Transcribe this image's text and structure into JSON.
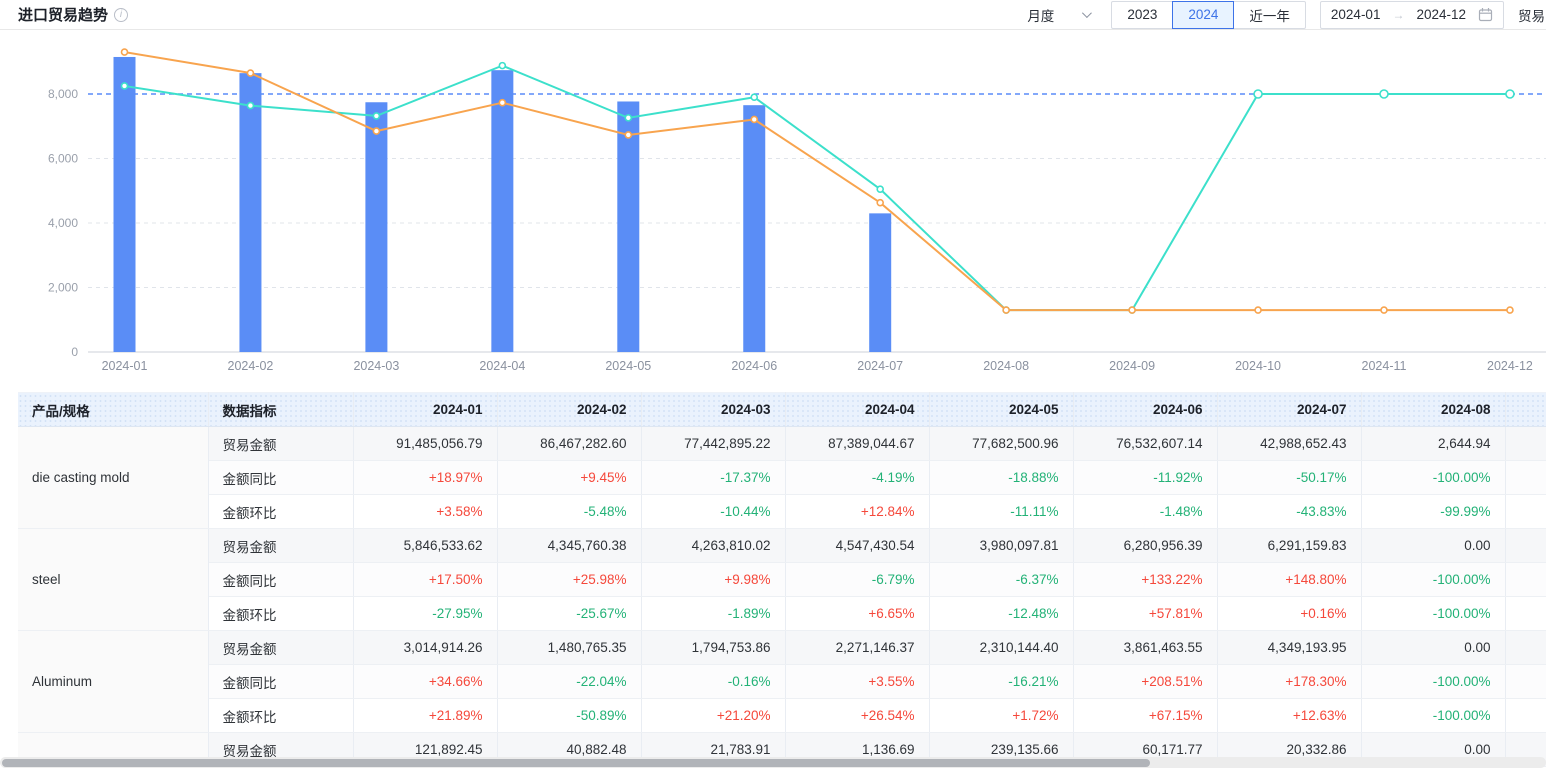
{
  "header": {
    "title": "进口贸易趋势",
    "info_icon": "info-circle",
    "frequency": "月度",
    "year_buttons": [
      {
        "label": "2023",
        "selected": false
      },
      {
        "label": "2024",
        "selected": true
      },
      {
        "label": "近一年",
        "selected": false
      }
    ],
    "date_range": {
      "start": "2024-01",
      "separator": "→",
      "end": "2024-12"
    },
    "partial_control_label": "贸易"
  },
  "chart_data": {
    "type": "combo-bar-line",
    "categories": [
      "2024-01",
      "2024-02",
      "2024-03",
      "2024-04",
      "2024-05",
      "2024-06",
      "2024-07",
      "2024-08",
      "2024-09",
      "2024-10",
      "2024-11",
      "2024-12"
    ],
    "yticks": [
      0,
      2000,
      4000,
      6000,
      8000
    ],
    "ylim": [
      0,
      9600
    ],
    "markline": 8000,
    "grid": true,
    "legend_position": "none",
    "values_estimated_from_pixels": true,
    "series": [
      {
        "name": "bar-series",
        "type": "bar",
        "color": "#5a8df6",
        "values": [
          9148,
          8647,
          7744,
          8739,
          7768,
          7653,
          4299,
          null,
          null,
          null,
          null,
          null
        ]
      },
      {
        "name": "line-series-teal",
        "type": "line",
        "color": "#3ce0cb",
        "values": [
          8250,
          7640,
          7320,
          8880,
          7260,
          7900,
          5050,
          1300,
          1300,
          8000,
          8000,
          8000
        ]
      },
      {
        "name": "line-series-orange",
        "type": "line",
        "color": "#f8a44e",
        "values": [
          9300,
          8650,
          6850,
          7730,
          6730,
          7210,
          4630,
          1300,
          1300,
          1300,
          1300,
          1300
        ]
      }
    ]
  },
  "table": {
    "col_product": "产品/规格",
    "col_indicator": "数据指标",
    "months": [
      "2024-01",
      "2024-02",
      "2024-03",
      "2024-04",
      "2024-05",
      "2024-06",
      "2024-07",
      "2024-08"
    ],
    "trailing_empty_col": "",
    "products": [
      {
        "name": "die casting mold",
        "rows": [
          {
            "indicator": "贸易金额",
            "kind": "amount",
            "values": [
              "91,485,056.79",
              "86,467,282.60",
              "77,442,895.22",
              "87,389,044.67",
              "77,682,500.96",
              "76,532,607.14",
              "42,988,652.43",
              "2,644.94"
            ]
          },
          {
            "indicator": "金额同比",
            "kind": "yoy",
            "values": [
              "+18.97%",
              "+9.45%",
              "-17.37%",
              "-4.19%",
              "-18.88%",
              "-11.92%",
              "-50.17%",
              "-100.00%"
            ]
          },
          {
            "indicator": "金额环比",
            "kind": "mom",
            "values": [
              "+3.58%",
              "-5.48%",
              "-10.44%",
              "+12.84%",
              "-11.11%",
              "-1.48%",
              "-43.83%",
              "-99.99%"
            ]
          }
        ]
      },
      {
        "name": "steel",
        "rows": [
          {
            "indicator": "贸易金额",
            "kind": "amount",
            "values": [
              "5,846,533.62",
              "4,345,760.38",
              "4,263,810.02",
              "4,547,430.54",
              "3,980,097.81",
              "6,280,956.39",
              "6,291,159.83",
              "0.00"
            ]
          },
          {
            "indicator": "金额同比",
            "kind": "yoy",
            "values": [
              "+17.50%",
              "+25.98%",
              "+9.98%",
              "-6.79%",
              "-6.37%",
              "+133.22%",
              "+148.80%",
              "-100.00%"
            ]
          },
          {
            "indicator": "金额环比",
            "kind": "mom",
            "values": [
              "-27.95%",
              "-25.67%",
              "-1.89%",
              "+6.65%",
              "-12.48%",
              "+57.81%",
              "+0.16%",
              "-100.00%"
            ]
          }
        ]
      },
      {
        "name": "Aluminum",
        "rows": [
          {
            "indicator": "贸易金额",
            "kind": "amount",
            "values": [
              "3,014,914.26",
              "1,480,765.35",
              "1,794,753.86",
              "2,271,146.37",
              "2,310,144.40",
              "3,861,463.55",
              "4,349,193.95",
              "0.00"
            ]
          },
          {
            "indicator": "金额同比",
            "kind": "yoy",
            "values": [
              "+34.66%",
              "-22.04%",
              "-0.16%",
              "+3.55%",
              "-16.21%",
              "+208.51%",
              "+178.30%",
              "-100.00%"
            ]
          },
          {
            "indicator": "金额环比",
            "kind": "mom",
            "values": [
              "+21.89%",
              "-50.89%",
              "+21.20%",
              "+26.54%",
              "+1.72%",
              "+67.15%",
              "+12.63%",
              "-100.00%"
            ]
          }
        ]
      },
      {
        "name": "",
        "rows": [
          {
            "indicator": "贸易金额",
            "kind": "amount",
            "values": [
              "121,892.45",
              "40,882.48",
              "21,783.91",
              "1,136.69",
              "239,135.66",
              "60,171.77",
              "20,332.86",
              "0.00"
            ]
          }
        ]
      }
    ]
  }
}
